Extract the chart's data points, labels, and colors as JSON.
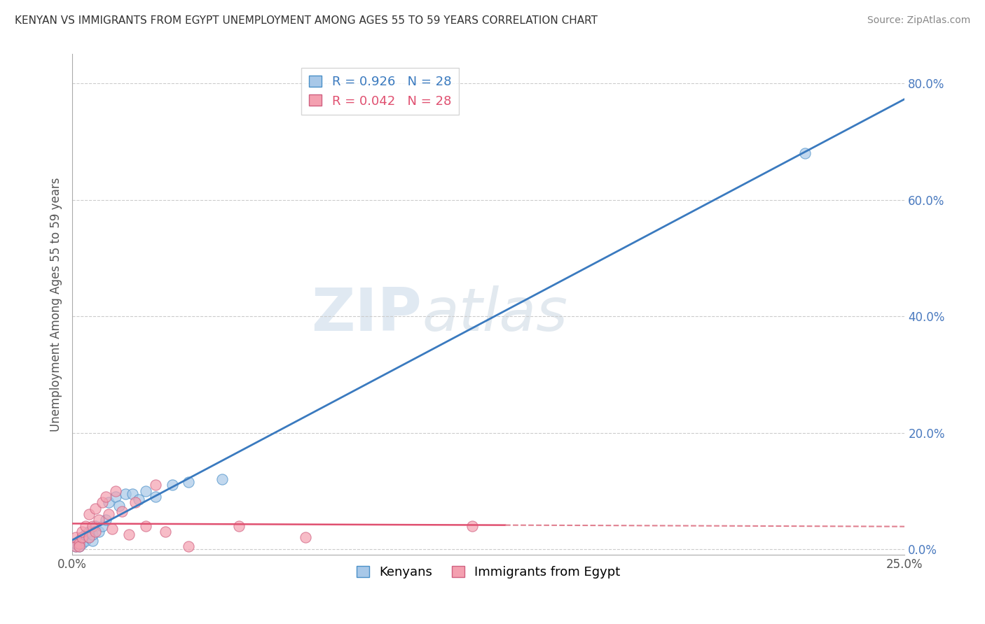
{
  "title": "KENYAN VS IMMIGRANTS FROM EGYPT UNEMPLOYMENT AMONG AGES 55 TO 59 YEARS CORRELATION CHART",
  "source": "Source: ZipAtlas.com",
  "ylabel_label": "Unemployment Among Ages 55 to 59 years",
  "legend_entries": [
    {
      "label": "R = 0.926   N = 28",
      "color": "#a8c8e8"
    },
    {
      "label": "R = 0.042   N = 28",
      "color": "#f4a0b0"
    }
  ],
  "legend_bottom": [
    "Kenyans",
    "Immigrants from Egypt"
  ],
  "kenyan_x": [
    0.001,
    0.001,
    0.002,
    0.002,
    0.003,
    0.003,
    0.004,
    0.004,
    0.005,
    0.005,
    0.006,
    0.006,
    0.007,
    0.008,
    0.009,
    0.01,
    0.011,
    0.013,
    0.014,
    0.016,
    0.018,
    0.02,
    0.022,
    0.025,
    0.03,
    0.035,
    0.045,
    0.22
  ],
  "kenyan_y": [
    0.005,
    0.01,
    0.005,
    0.015,
    0.01,
    0.02,
    0.015,
    0.025,
    0.02,
    0.03,
    0.015,
    0.025,
    0.04,
    0.03,
    0.04,
    0.05,
    0.08,
    0.09,
    0.075,
    0.095,
    0.095,
    0.085,
    0.1,
    0.09,
    0.11,
    0.115,
    0.12,
    0.68
  ],
  "egypt_x": [
    0.001,
    0.001,
    0.002,
    0.002,
    0.003,
    0.003,
    0.004,
    0.005,
    0.005,
    0.006,
    0.007,
    0.007,
    0.008,
    0.009,
    0.01,
    0.011,
    0.012,
    0.013,
    0.015,
    0.017,
    0.019,
    0.022,
    0.025,
    0.028,
    0.035,
    0.05,
    0.07,
    0.12
  ],
  "egypt_y": [
    0.005,
    0.02,
    0.01,
    0.005,
    0.02,
    0.03,
    0.04,
    0.06,
    0.02,
    0.04,
    0.07,
    0.03,
    0.05,
    0.08,
    0.09,
    0.06,
    0.035,
    0.1,
    0.065,
    0.025,
    0.08,
    0.04,
    0.11,
    0.03,
    0.005,
    0.04,
    0.02,
    0.04
  ],
  "blue_color": "#a8c8e8",
  "blue_edge_color": "#4a90c8",
  "pink_color": "#f4a0b0",
  "pink_edge_color": "#d06080",
  "blue_line_color": "#3a7abf",
  "pink_line_color": "#e05070",
  "pink_dash_color": "#e08090",
  "watermark_zip": "ZIP",
  "watermark_atlas": "atlas",
  "bg_color": "#ffffff",
  "grid_color": "#cccccc",
  "xlim": [
    0.0,
    0.25
  ],
  "ylim": [
    -0.01,
    0.85
  ],
  "pink_solid_xlim": [
    0.0,
    0.13
  ],
  "pink_dash_xlim": [
    0.13,
    0.25
  ],
  "title_fontsize": 11,
  "source_fontsize": 10,
  "tick_fontsize": 12,
  "ylabel_fontsize": 12
}
